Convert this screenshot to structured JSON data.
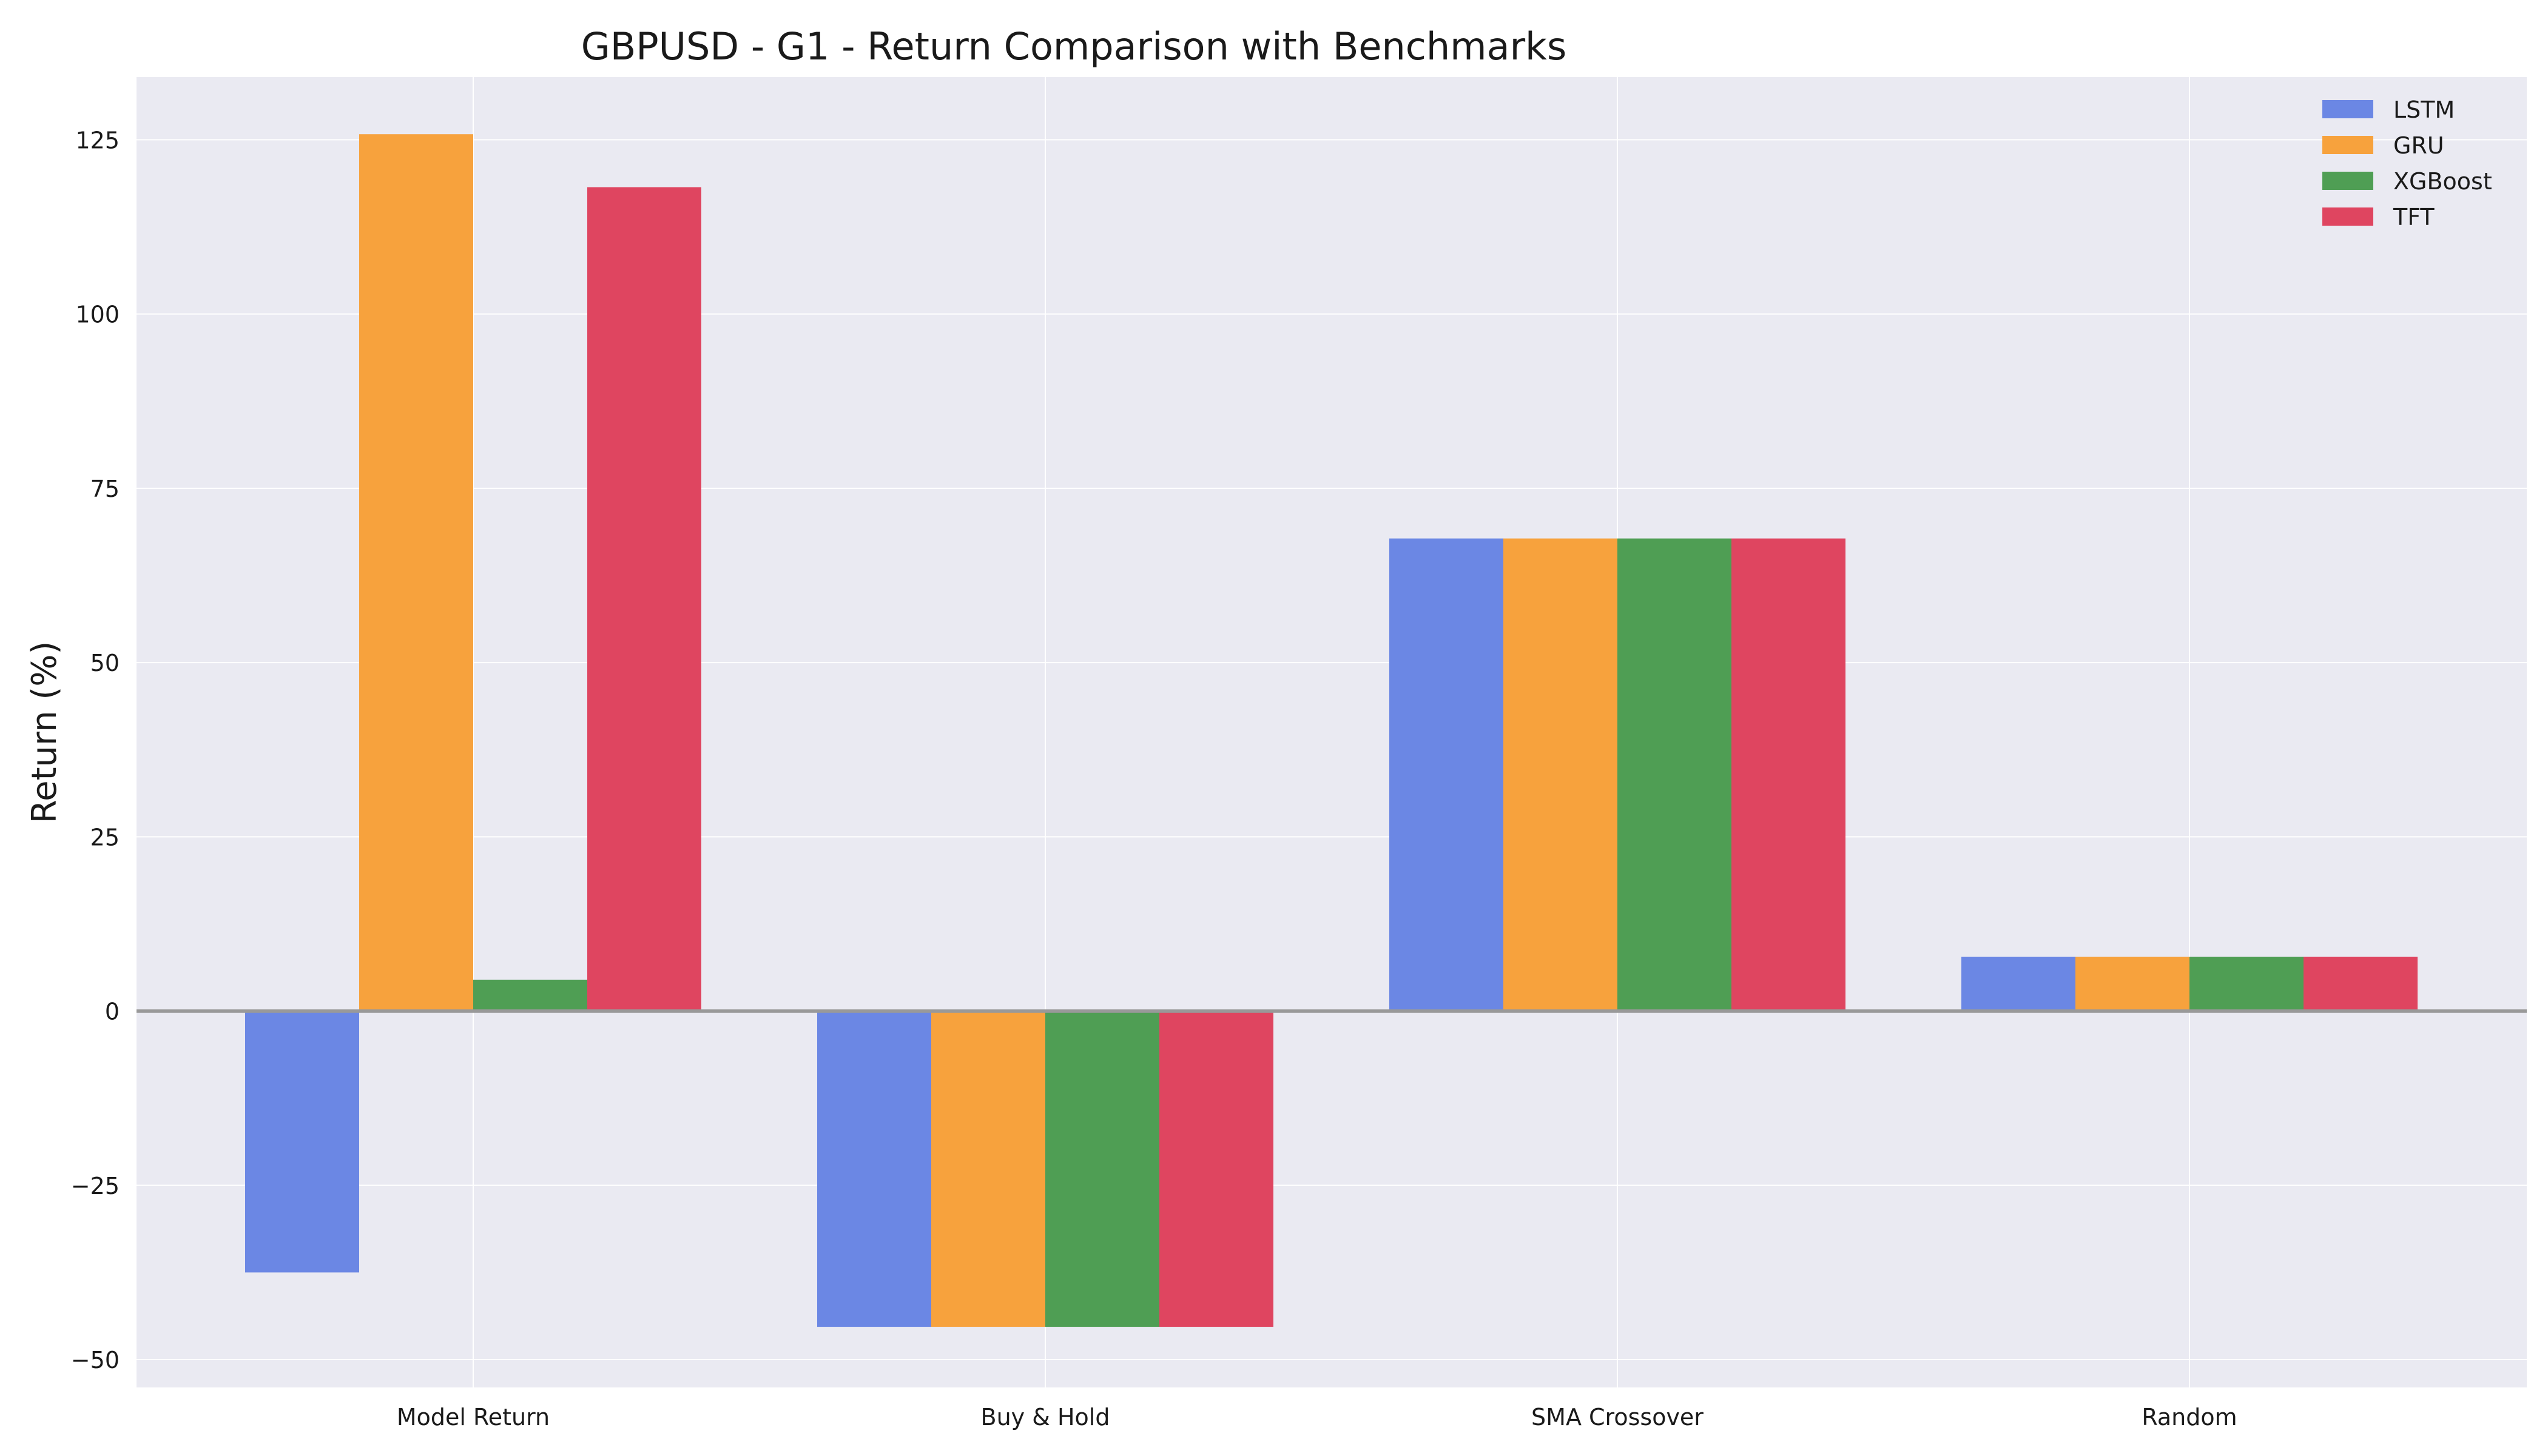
{
  "chart_data": {
    "type": "bar",
    "title": "GBPUSD - G1 - Return Comparison with Benchmarks",
    "xlabel": "",
    "ylabel": "Return (%)",
    "categories": [
      "Model Return",
      "Buy & Hold",
      "SMA Crossover",
      "Random"
    ],
    "series": [
      {
        "name": "LSTM",
        "color": "#6b87e4",
        "values": [
          -37.5,
          -45.3,
          67.8,
          7.8
        ]
      },
      {
        "name": "GRU",
        "color": "#f7a23d",
        "values": [
          125.8,
          -45.3,
          67.8,
          7.8
        ]
      },
      {
        "name": "XGBoost",
        "color": "#4f9e54",
        "values": [
          4.5,
          -45.3,
          67.8,
          7.8
        ]
      },
      {
        "name": "TFT",
        "color": "#df4560",
        "values": [
          118.2,
          -45.3,
          67.8,
          7.8
        ]
      }
    ],
    "ylim": [
      -54,
      134
    ],
    "yticks": [
      -50,
      -25,
      0,
      25,
      50,
      75,
      100,
      125
    ],
    "ytick_labels": [
      "−50",
      "−25",
      "0",
      "25",
      "50",
      "75",
      "100",
      "125"
    ],
    "grid": true,
    "legend": "top-right",
    "zero_line": true,
    "colors": {
      "plot_background": "#eaeaf2",
      "grid": "#ffffff",
      "zero_line": "#999999"
    }
  }
}
